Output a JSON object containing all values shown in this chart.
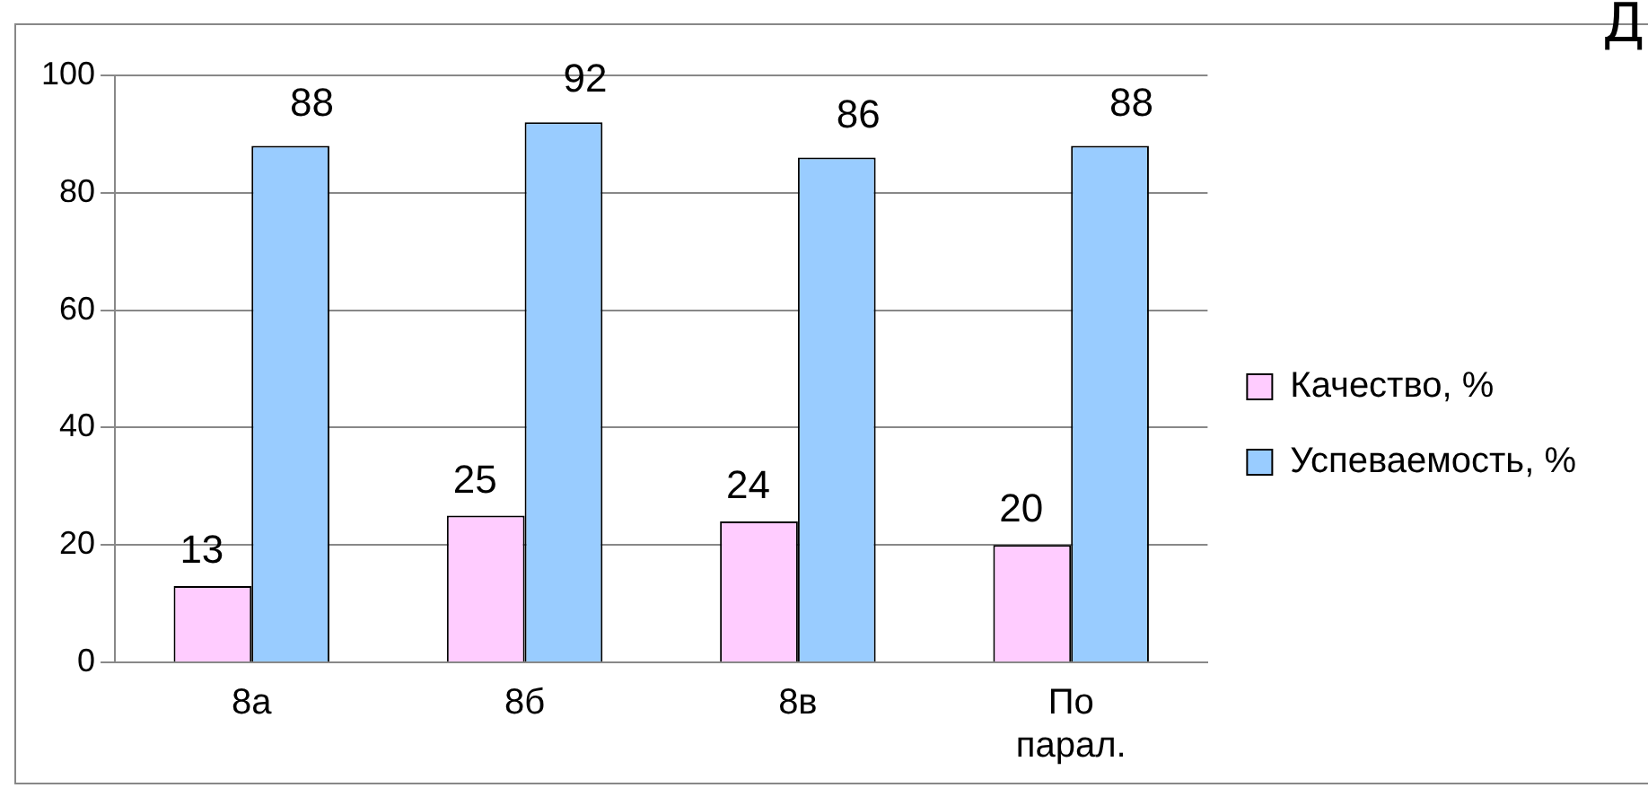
{
  "chart_data": {
    "type": "bar",
    "categories": [
      "8а",
      "8б",
      "8в",
      "По парал."
    ],
    "series": [
      {
        "name": "Качество, %",
        "color": "#ffccff",
        "values": [
          13,
          25,
          24,
          20
        ]
      },
      {
        "name": "Успеваемость, %",
        "color": "#99ccff",
        "values": [
          88,
          92,
          86,
          88
        ]
      }
    ],
    "ylim": [
      0,
      100
    ],
    "yticks": [
      0,
      20,
      40,
      60,
      80,
      100
    ],
    "grid": "y",
    "legend": "right",
    "data_labels": true,
    "annotations": [
      "Д"
    ]
  }
}
